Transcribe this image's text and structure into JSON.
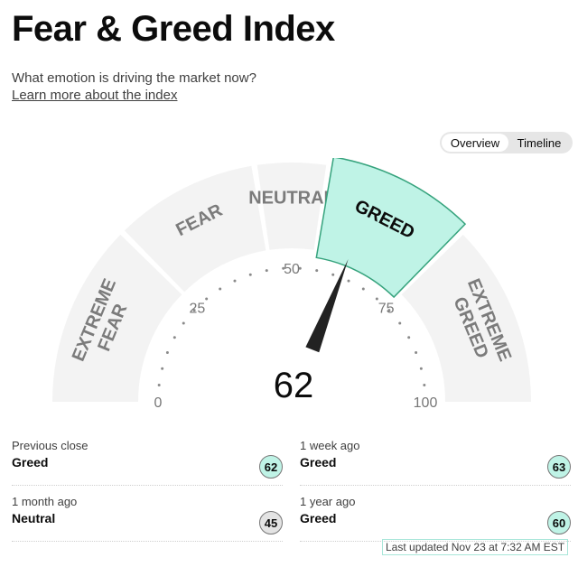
{
  "header": {
    "title": "Fear & Greed Index",
    "subtitle": "What emotion is driving the market now?",
    "learn_more": "Learn more about the index"
  },
  "view_toggle": {
    "options": [
      "Overview",
      "Timeline"
    ],
    "selected": "Overview"
  },
  "gauge": {
    "value": 62,
    "value_text": "62",
    "active_zone": "GREED",
    "zones": [
      {
        "lines": [
          "EXTREME",
          "FEAR"
        ],
        "range": [
          0,
          25
        ]
      },
      {
        "lines": [
          "FEAR"
        ],
        "range": [
          25,
          45
        ]
      },
      {
        "lines": [
          "NEUTRAL"
        ],
        "range": [
          45,
          55
        ]
      },
      {
        "lines": [
          "GREED"
        ],
        "range": [
          55,
          75
        ]
      },
      {
        "lines": [
          "EXTREME",
          "GREED"
        ],
        "range": [
          75,
          100
        ]
      }
    ],
    "scale_labels": [
      "0",
      "25",
      "50",
      "75",
      "100"
    ],
    "colors": {
      "zone_fill": "#f3f3f3",
      "active_fill": "#bff3e6",
      "active_stroke": "#36a37d",
      "zone_text": "#7b7b7b",
      "active_text": "#0c0c0c",
      "needle": "#222222"
    }
  },
  "history": [
    {
      "when": "Previous close",
      "label": "Greed",
      "value": "62",
      "color": "#bff3e6"
    },
    {
      "when": "1 week ago",
      "label": "Greed",
      "value": "63",
      "color": "#bff3e6"
    },
    {
      "when": "1 month ago",
      "label": "Neutral",
      "value": "45",
      "color": "#e3e3e3"
    },
    {
      "when": "1 year ago",
      "label": "Greed",
      "value": "60",
      "color": "#bff3e6"
    }
  ],
  "last_updated": "Last updated Nov 23 at 7:32 AM EST"
}
